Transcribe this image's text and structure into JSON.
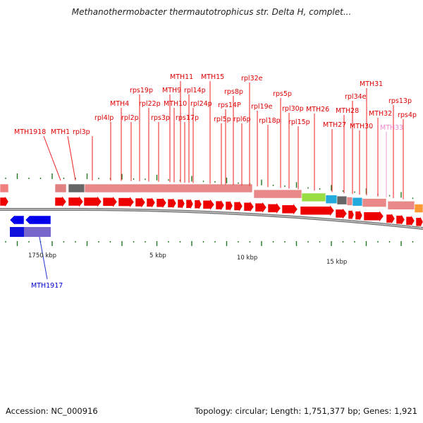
{
  "title": "Methanothermobacter thermautotrophicus str. Delta H, complet...",
  "footer": {
    "accession": "Accession: NC_000916",
    "topology": "Topology: circular; Length: 1,751,377 bp; Genes: 1,921"
  },
  "scale_labels": [
    "1750 kbp",
    "5 kbp",
    "10 kbp",
    "15 kbp"
  ],
  "colors": {
    "gene_label": "#dd0000",
    "rna_label": "#ee88cc",
    "reverse_label": "#0000cc",
    "forward_gene": "#ee0000",
    "reverse_gene": "#0000ee",
    "backbone": "#888888",
    "tick": "#227722"
  },
  "forward_gene_labels": [
    "MTH1918",
    "MTH1",
    "rpl3p",
    "rpl4lp",
    "MTH4",
    "rpl2p",
    "rps19p",
    "rpl22p",
    "rps3p",
    "MTH9",
    "MTH10",
    "MTH11",
    "rps17p",
    "rpl14p",
    "rpl24p",
    "MTH15",
    "rpl5p",
    "rps14P",
    "rps8p",
    "rpl6p",
    "rpl32e",
    "rpl19e",
    "rpl18p",
    "rps5p",
    "rpl30p",
    "rpl15p",
    "MTH26",
    "MTH27",
    "MTH28",
    "rpl34e",
    "MTH30",
    "MTH31",
    "MTH33",
    "MTH32",
    "rps13p",
    "rps4p"
  ],
  "reverse_gene_labels": [
    "MTH1917"
  ]
}
